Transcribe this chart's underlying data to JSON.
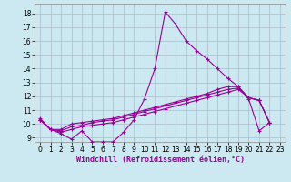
{
  "xlabel": "Windchill (Refroidissement éolien,°C)",
  "background_color": "#cce8f0",
  "grid_color": "#aabbcc",
  "line_color": "#990099",
  "xlim": [
    -0.5,
    23.5
  ],
  "ylim": [
    8.7,
    18.7
  ],
  "xticks": [
    0,
    1,
    2,
    3,
    4,
    5,
    6,
    7,
    8,
    9,
    10,
    11,
    12,
    13,
    14,
    15,
    16,
    17,
    18,
    19,
    20,
    21,
    22,
    23
  ],
  "yticks": [
    9,
    10,
    11,
    12,
    13,
    14,
    15,
    16,
    17,
    18
  ],
  "series": [
    {
      "x": [
        0,
        1,
        2,
        3,
        4,
        5,
        6,
        7,
        8,
        9,
        10,
        11,
        12,
        13,
        14,
        15,
        16,
        17,
        18,
        19,
        20,
        21,
        22
      ],
      "y": [
        10.4,
        9.6,
        9.3,
        8.9,
        9.5,
        8.7,
        8.7,
        8.7,
        9.4,
        10.3,
        11.8,
        14.0,
        18.1,
        17.2,
        16.0,
        15.3,
        14.7,
        14.0,
        13.3,
        12.7,
        11.8,
        9.5,
        10.1
      ],
      "linestyle": "-",
      "marker": "+"
    },
    {
      "x": [
        0,
        1,
        2,
        3,
        4,
        5,
        6,
        7,
        8,
        9,
        10,
        11,
        12,
        13,
        14,
        15,
        16,
        17,
        18,
        19,
        20,
        21,
        22
      ],
      "y": [
        10.3,
        9.6,
        9.4,
        9.6,
        9.8,
        9.9,
        10.0,
        10.1,
        10.3,
        10.5,
        10.7,
        10.9,
        11.1,
        11.3,
        11.5,
        11.7,
        11.9,
        12.1,
        12.3,
        12.5,
        11.9,
        11.7,
        10.1
      ],
      "linestyle": "-",
      "marker": "+"
    },
    {
      "x": [
        0,
        1,
        2,
        3,
        4,
        5,
        6,
        7,
        8,
        9,
        10,
        11,
        12,
        13,
        14,
        15,
        16,
        17,
        18,
        19,
        20,
        21,
        22
      ],
      "y": [
        10.3,
        9.6,
        9.5,
        9.8,
        9.9,
        10.1,
        10.2,
        10.3,
        10.5,
        10.7,
        10.9,
        11.1,
        11.3,
        11.5,
        11.7,
        11.9,
        12.1,
        12.3,
        12.5,
        12.6,
        11.9,
        11.7,
        10.1
      ],
      "linestyle": "-",
      "marker": "+"
    },
    {
      "x": [
        0,
        1,
        2,
        3,
        4,
        5,
        6,
        7,
        8,
        9,
        10,
        11,
        12,
        13,
        14,
        15,
        16,
        17,
        18,
        19,
        20,
        21,
        22
      ],
      "y": [
        10.3,
        9.6,
        9.6,
        10.0,
        10.1,
        10.2,
        10.3,
        10.4,
        10.6,
        10.8,
        11.0,
        11.2,
        11.4,
        11.6,
        11.8,
        12.0,
        12.2,
        12.5,
        12.7,
        12.7,
        11.9,
        11.7,
        10.1
      ],
      "linestyle": "-",
      "marker": "+"
    }
  ],
  "markersize": 3,
  "linewidth": 0.8,
  "tick_fontsize": 5.5,
  "xlabel_fontsize": 6.0
}
